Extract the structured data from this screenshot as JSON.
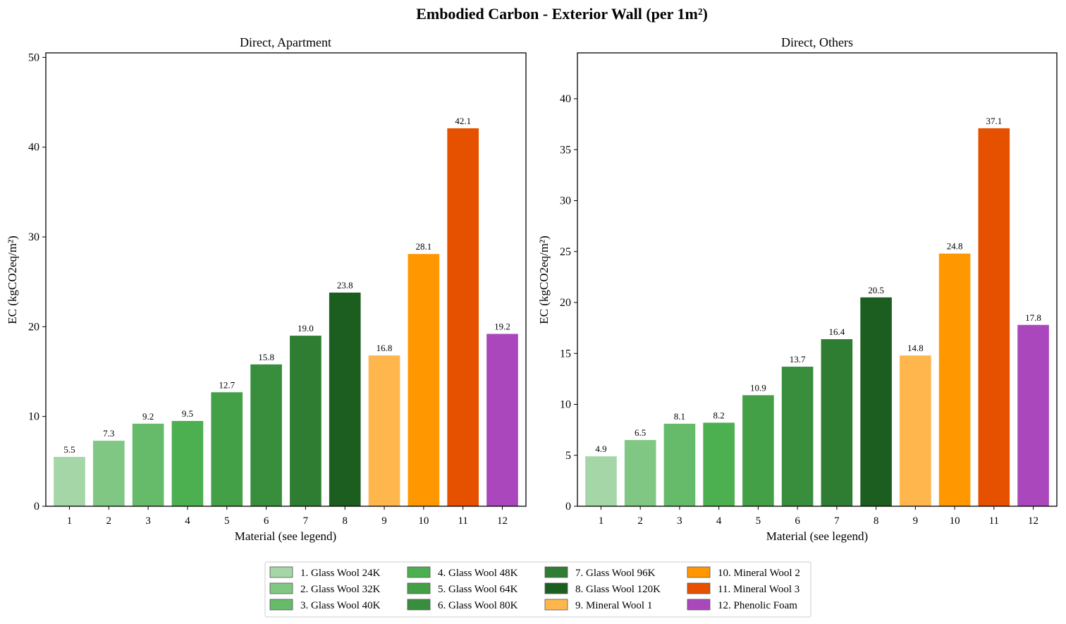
{
  "figure": {
    "title": "Embodied Carbon - Exterior Wall (per 1m²)"
  },
  "legend": {
    "placement": "bottom-center",
    "items": [
      {
        "label": "1. Glass Wool 24K",
        "color": "#a5d6a7"
      },
      {
        "label": "2. Glass Wool 32K",
        "color": "#81c784"
      },
      {
        "label": "3. Glass Wool 40K",
        "color": "#66bb6a"
      },
      {
        "label": "4. Glass Wool 48K",
        "color": "#4caf50"
      },
      {
        "label": "5. Glass Wool 64K",
        "color": "#43a047"
      },
      {
        "label": "6. Glass Wool 80K",
        "color": "#388e3c"
      },
      {
        "label": "7. Glass Wool 96K",
        "color": "#2e7d32"
      },
      {
        "label": "8. Glass Wool 120K",
        "color": "#1b5e20"
      },
      {
        "label": "9. Mineral Wool 1",
        "color": "#ffb74d"
      },
      {
        "label": "10. Mineral Wool 2",
        "color": "#ff9800"
      },
      {
        "label": "11. Mineral Wool 3",
        "color": "#e65100"
      },
      {
        "label": "12. Phenolic Foam",
        "color": "#ab47bc"
      }
    ]
  },
  "chart_data": [
    {
      "type": "bar",
      "title": "Direct, Apartment",
      "xlabel": "Material (see legend)",
      "ylabel": "EC (kgCO2eq/m²)",
      "categories": [
        "1",
        "2",
        "3",
        "4",
        "5",
        "6",
        "7",
        "8",
        "9",
        "10",
        "11",
        "12"
      ],
      "values": [
        5.5,
        7.3,
        9.2,
        9.5,
        12.7,
        15.8,
        19.0,
        23.8,
        16.8,
        28.1,
        42.1,
        19.2
      ],
      "value_labels": [
        "5.5",
        "7.3",
        "9.2",
        "9.5",
        "12.7",
        "15.8",
        "19.0",
        "23.8",
        "16.8",
        "28.1",
        "42.1",
        "19.2"
      ],
      "ylim": [
        0,
        50.5
      ],
      "yticks": [
        0,
        10,
        20,
        30,
        40,
        50
      ],
      "ytick_labels": [
        "0",
        "10",
        "20",
        "30",
        "40",
        "50"
      ],
      "grid": false
    },
    {
      "type": "bar",
      "title": "Direct, Others",
      "xlabel": "Material (see legend)",
      "ylabel": "EC (kgCO2eq/m²)",
      "categories": [
        "1",
        "2",
        "3",
        "4",
        "5",
        "6",
        "7",
        "8",
        "9",
        "10",
        "11",
        "12"
      ],
      "values": [
        4.9,
        6.5,
        8.1,
        8.2,
        10.9,
        13.7,
        16.4,
        20.5,
        14.8,
        24.8,
        37.1,
        17.8
      ],
      "value_labels": [
        "4.9",
        "6.5",
        "8.1",
        "8.2",
        "10.9",
        "13.7",
        "16.4",
        "20.5",
        "14.8",
        "24.8",
        "37.1",
        "17.8"
      ],
      "ylim": [
        0,
        44.5
      ],
      "yticks": [
        0,
        5,
        10,
        15,
        20,
        25,
        30,
        35,
        40
      ],
      "ytick_labels": [
        "0",
        "5",
        "10",
        "15",
        "20",
        "25",
        "30",
        "35",
        "40"
      ],
      "grid": false
    }
  ]
}
